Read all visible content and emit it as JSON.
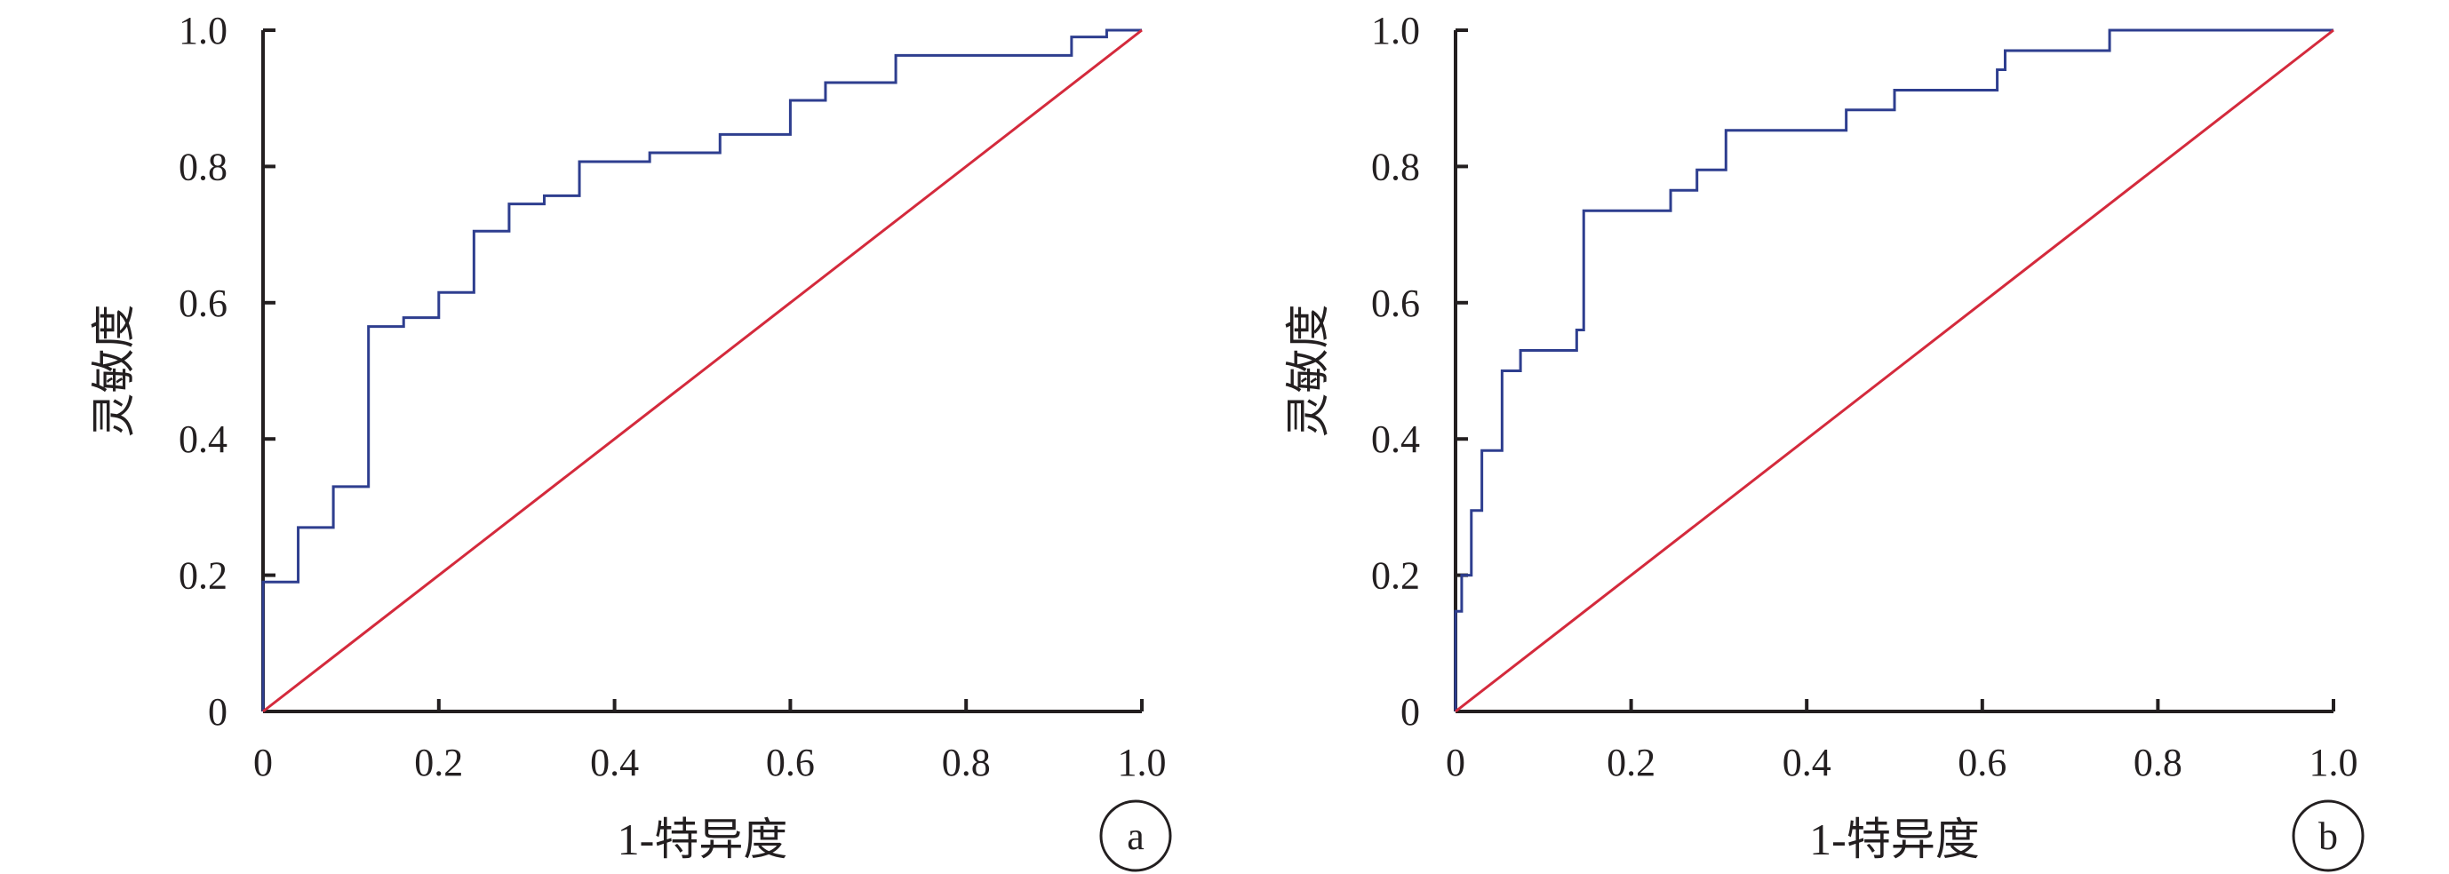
{
  "chart_data": [
    {
      "type": "line",
      "panel_label": "a",
      "xlabel": "1-特异度",
      "ylabel": "灵敏度",
      "xlim": [
        0,
        1
      ],
      "ylim": [
        0,
        1
      ],
      "x_ticks": [
        "0",
        "0.2",
        "0.4",
        "0.6",
        "0.8",
        "1.0"
      ],
      "y_ticks": [
        "0",
        "0.2",
        "0.4",
        "0.6",
        "0.8",
        "1.0"
      ],
      "grid": false,
      "series": [
        {
          "color": "#2e3e8f",
          "step": true,
          "points": [
            [
              0,
              0
            ],
            [
              0,
              0.19
            ],
            [
              0.04,
              0.19
            ],
            [
              0.04,
              0.27
            ],
            [
              0.08,
              0.27
            ],
            [
              0.08,
              0.33
            ],
            [
              0.12,
              0.33
            ],
            [
              0.12,
              0.565
            ],
            [
              0.16,
              0.565
            ],
            [
              0.16,
              0.578
            ],
            [
              0.2,
              0.578
            ],
            [
              0.2,
              0.615
            ],
            [
              0.24,
              0.615
            ],
            [
              0.24,
              0.705
            ],
            [
              0.28,
              0.705
            ],
            [
              0.28,
              0.745
            ],
            [
              0.32,
              0.745
            ],
            [
              0.32,
              0.757
            ],
            [
              0.36,
              0.757
            ],
            [
              0.36,
              0.807
            ],
            [
              0.44,
              0.807
            ],
            [
              0.44,
              0.82
            ],
            [
              0.52,
              0.82
            ],
            [
              0.52,
              0.847
            ],
            [
              0.6,
              0.847
            ],
            [
              0.6,
              0.897
            ],
            [
              0.64,
              0.897
            ],
            [
              0.64,
              0.923
            ],
            [
              0.72,
              0.923
            ],
            [
              0.72,
              0.963
            ],
            [
              0.92,
              0.963
            ],
            [
              0.92,
              0.99
            ],
            [
              0.96,
              0.99
            ],
            [
              0.96,
              1.0
            ],
            [
              1.0,
              1.0
            ]
          ]
        },
        {
          "color": "#d42a3c",
          "step": false,
          "points": [
            [
              0,
              0
            ],
            [
              1,
              1
            ]
          ]
        }
      ]
    },
    {
      "type": "line",
      "panel_label": "b",
      "xlabel": "1-特异度",
      "ylabel": "灵敏度",
      "xlim": [
        0,
        1
      ],
      "ylim": [
        0,
        1
      ],
      "x_ticks": [
        "0",
        "0.2",
        "0.4",
        "0.6",
        "0.8",
        "1.0"
      ],
      "y_ticks": [
        "0",
        "0.2",
        "0.4",
        "0.6",
        "0.8",
        "1.0"
      ],
      "grid": false,
      "series": [
        {
          "color": "#2e3e8f",
          "step": true,
          "points": [
            [
              0,
              0
            ],
            [
              0,
              0.147
            ],
            [
              0.007,
              0.147
            ],
            [
              0.007,
              0.2
            ],
            [
              0.018,
              0.2
            ],
            [
              0.018,
              0.295
            ],
            [
              0.03,
              0.295
            ],
            [
              0.03,
              0.383
            ],
            [
              0.053,
              0.383
            ],
            [
              0.053,
              0.5
            ],
            [
              0.074,
              0.5
            ],
            [
              0.074,
              0.53
            ],
            [
              0.138,
              0.53
            ],
            [
              0.138,
              0.56
            ],
            [
              0.146,
              0.56
            ],
            [
              0.146,
              0.735
            ],
            [
              0.245,
              0.735
            ],
            [
              0.245,
              0.765
            ],
            [
              0.275,
              0.765
            ],
            [
              0.275,
              0.795
            ],
            [
              0.308,
              0.795
            ],
            [
              0.308,
              0.853
            ],
            [
              0.445,
              0.853
            ],
            [
              0.445,
              0.883
            ],
            [
              0.5,
              0.883
            ],
            [
              0.5,
              0.912
            ],
            [
              0.617,
              0.912
            ],
            [
              0.617,
              0.942
            ],
            [
              0.626,
              0.942
            ],
            [
              0.626,
              0.97
            ],
            [
              0.745,
              0.97
            ],
            [
              0.745,
              1.0
            ],
            [
              1.0,
              1.0
            ]
          ]
        },
        {
          "color": "#d42a3c",
          "step": false,
          "points": [
            [
              0,
              0
            ],
            [
              1,
              1
            ]
          ]
        }
      ]
    }
  ]
}
